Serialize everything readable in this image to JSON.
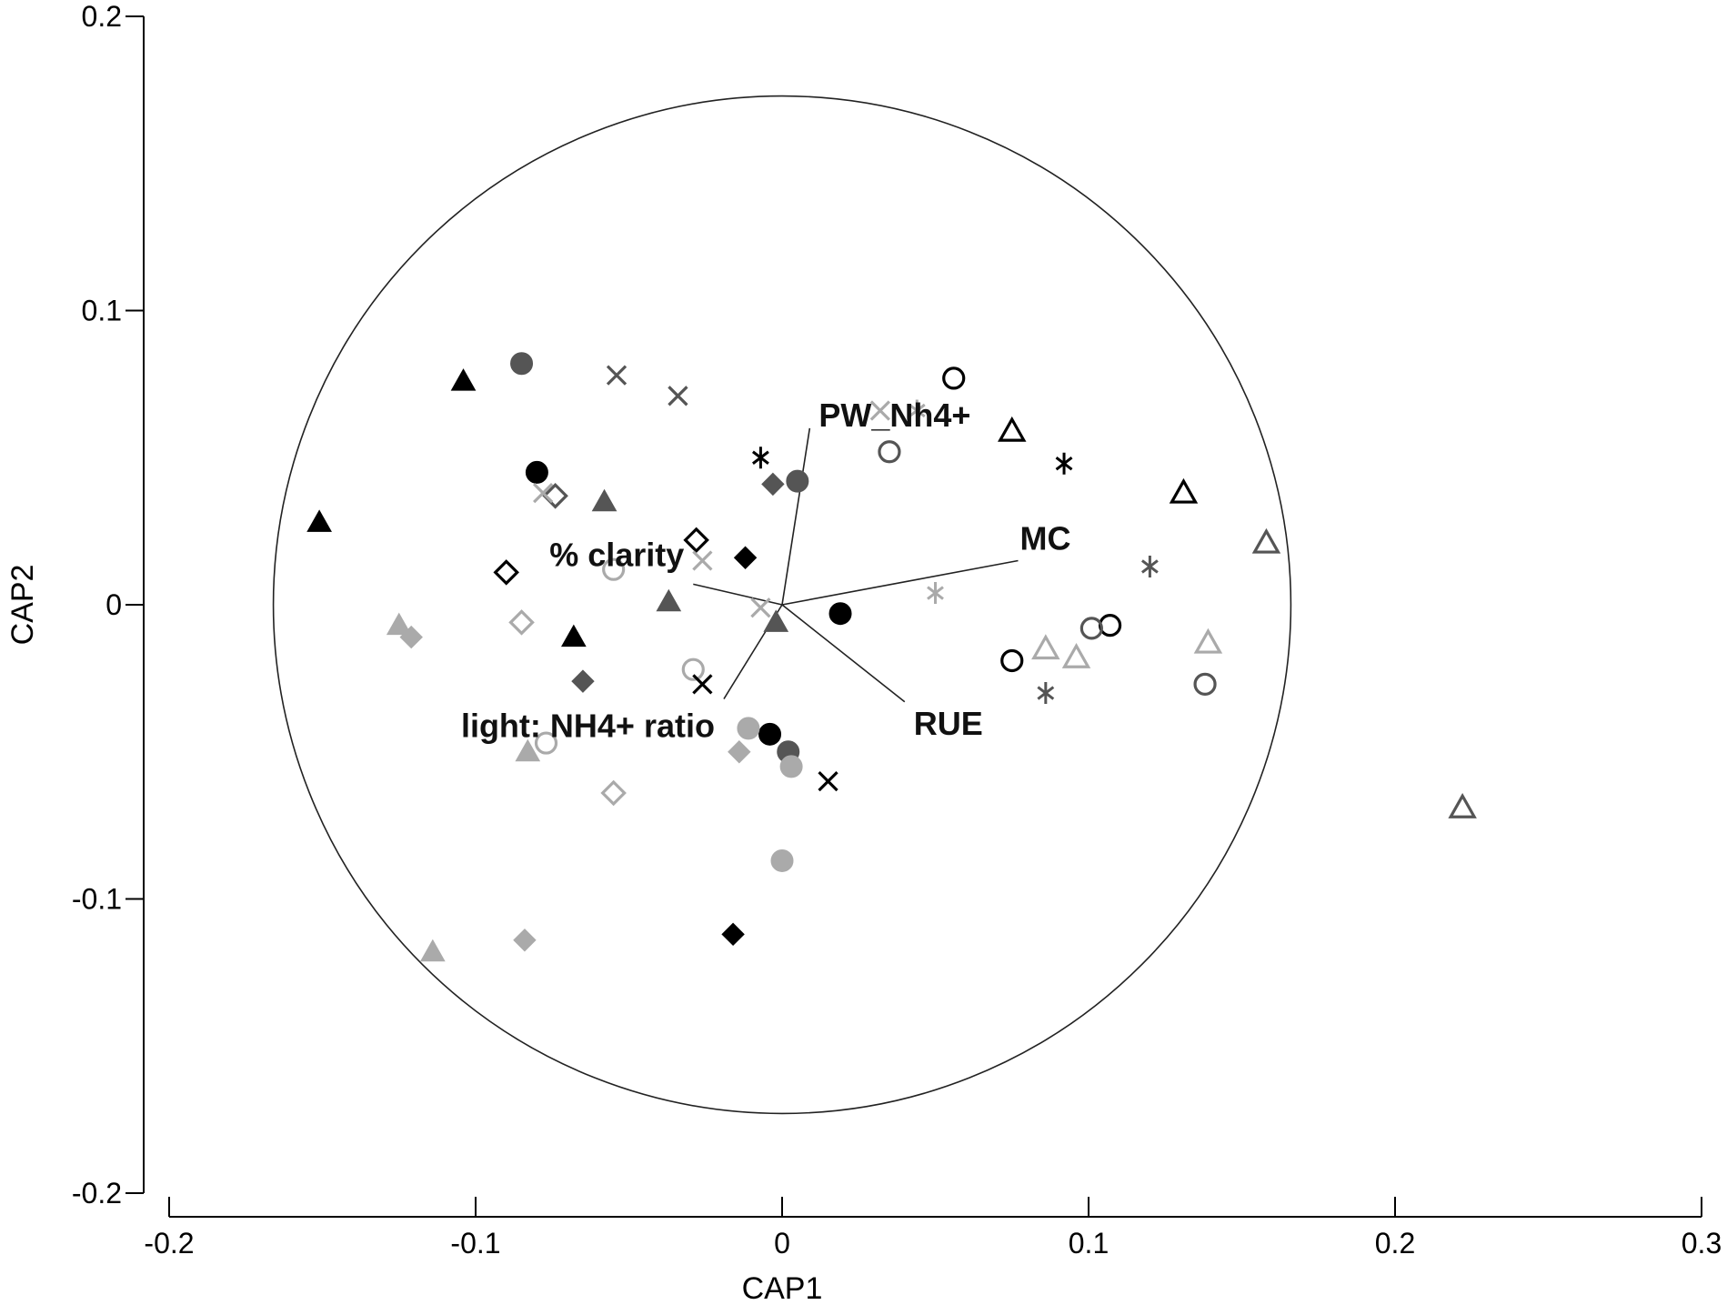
{
  "chart_data": {
    "type": "scatter",
    "xlabel": "CAP1",
    "ylabel": "CAP2",
    "xlim": [
      -0.2,
      0.3
    ],
    "ylim": [
      -0.2,
      0.2
    ],
    "xticks": [
      -0.2,
      -0.1,
      0,
      0.1,
      0.2,
      0.3
    ],
    "xtick_labels": [
      "-0.2",
      "-0.1",
      "0",
      "0.1",
      "0.2",
      "0.3"
    ],
    "yticks": [
      -0.2,
      -0.1,
      0,
      0.1,
      0.2
    ],
    "ytick_labels": [
      "-0.2",
      "-0.1",
      "0",
      "0.1",
      "0.2"
    ],
    "grid": false,
    "legend": "none",
    "correlation_circle": {
      "center": [
        0,
        0
      ],
      "radius": 0.166
    },
    "vectors": [
      {
        "label": "PW_Nh4+",
        "x": 0.009,
        "y": 0.06
      },
      {
        "label": "MC",
        "x": 0.077,
        "y": 0.015
      },
      {
        "label": "RUE",
        "x": 0.04,
        "y": -0.033
      },
      {
        "label": "% clarity",
        "x": -0.029,
        "y": 0.007
      },
      {
        "label": "light: NH4+ ratio",
        "x": -0.019,
        "y": -0.032
      }
    ],
    "points": [
      {
        "x": -0.151,
        "y": 0.028,
        "marker": "triangle",
        "fill": "filled",
        "color": "#000000"
      },
      {
        "x": -0.104,
        "y": 0.076,
        "marker": "triangle",
        "fill": "filled",
        "color": "#000000"
      },
      {
        "x": -0.068,
        "y": -0.011,
        "marker": "triangle",
        "fill": "filled",
        "color": "#000000"
      },
      {
        "x": -0.058,
        "y": 0.035,
        "marker": "triangle",
        "fill": "filled",
        "color": "#555555"
      },
      {
        "x": -0.037,
        "y": 0.001,
        "marker": "triangle",
        "fill": "filled",
        "color": "#555555"
      },
      {
        "x": -0.002,
        "y": -0.006,
        "marker": "triangle",
        "fill": "filled",
        "color": "#555555"
      },
      {
        "x": -0.125,
        "y": -0.007,
        "marker": "triangle",
        "fill": "filled",
        "color": "#aaaaaa"
      },
      {
        "x": -0.083,
        "y": -0.05,
        "marker": "triangle",
        "fill": "filled",
        "color": "#aaaaaa"
      },
      {
        "x": -0.114,
        "y": -0.118,
        "marker": "triangle",
        "fill": "filled",
        "color": "#aaaaaa"
      },
      {
        "x": 0.075,
        "y": 0.059,
        "marker": "triangle",
        "fill": "open",
        "color": "#000000"
      },
      {
        "x": 0.131,
        "y": 0.038,
        "marker": "triangle",
        "fill": "open",
        "color": "#000000"
      },
      {
        "x": 0.158,
        "y": 0.021,
        "marker": "triangle",
        "fill": "open",
        "color": "#555555"
      },
      {
        "x": 0.222,
        "y": -0.069,
        "marker": "triangle",
        "fill": "open",
        "color": "#555555"
      },
      {
        "x": 0.086,
        "y": -0.015,
        "marker": "triangle",
        "fill": "open",
        "color": "#aaaaaa"
      },
      {
        "x": 0.096,
        "y": -0.018,
        "marker": "triangle",
        "fill": "open",
        "color": "#aaaaaa"
      },
      {
        "x": 0.139,
        "y": -0.013,
        "marker": "triangle",
        "fill": "open",
        "color": "#aaaaaa"
      },
      {
        "x": -0.08,
        "y": 0.045,
        "marker": "circle",
        "fill": "filled",
        "color": "#000000"
      },
      {
        "x": 0.019,
        "y": -0.003,
        "marker": "circle",
        "fill": "filled",
        "color": "#000000"
      },
      {
        "x": -0.004,
        "y": -0.044,
        "marker": "circle",
        "fill": "filled",
        "color": "#000000"
      },
      {
        "x": -0.085,
        "y": 0.082,
        "marker": "circle",
        "fill": "filled",
        "color": "#555555"
      },
      {
        "x": 0.005,
        "y": 0.042,
        "marker": "circle",
        "fill": "filled",
        "color": "#555555"
      },
      {
        "x": 0.002,
        "y": -0.05,
        "marker": "circle",
        "fill": "filled",
        "color": "#555555"
      },
      {
        "x": -0.011,
        "y": -0.042,
        "marker": "circle",
        "fill": "filled",
        "color": "#aaaaaa"
      },
      {
        "x": 0.003,
        "y": -0.055,
        "marker": "circle",
        "fill": "filled",
        "color": "#aaaaaa"
      },
      {
        "x": 0.0,
        "y": -0.087,
        "marker": "circle",
        "fill": "filled",
        "color": "#aaaaaa"
      },
      {
        "x": 0.056,
        "y": 0.077,
        "marker": "circle",
        "fill": "open",
        "color": "#000000"
      },
      {
        "x": 0.075,
        "y": -0.019,
        "marker": "circle",
        "fill": "open",
        "color": "#000000"
      },
      {
        "x": 0.107,
        "y": -0.007,
        "marker": "circle",
        "fill": "open",
        "color": "#000000"
      },
      {
        "x": 0.035,
        "y": 0.052,
        "marker": "circle",
        "fill": "open",
        "color": "#555555"
      },
      {
        "x": 0.101,
        "y": -0.008,
        "marker": "circle",
        "fill": "open",
        "color": "#555555"
      },
      {
        "x": 0.138,
        "y": -0.027,
        "marker": "circle",
        "fill": "open",
        "color": "#555555"
      },
      {
        "x": -0.029,
        "y": -0.022,
        "marker": "circle",
        "fill": "open",
        "color": "#aaaaaa"
      },
      {
        "x": -0.077,
        "y": -0.047,
        "marker": "circle",
        "fill": "open",
        "color": "#aaaaaa"
      },
      {
        "x": -0.055,
        "y": 0.012,
        "marker": "circle",
        "fill": "open",
        "color": "#aaaaaa"
      },
      {
        "x": -0.012,
        "y": 0.016,
        "marker": "diamond",
        "fill": "filled",
        "color": "#000000"
      },
      {
        "x": -0.016,
        "y": -0.112,
        "marker": "diamond",
        "fill": "filled",
        "color": "#000000"
      },
      {
        "x": -0.065,
        "y": -0.026,
        "marker": "diamond",
        "fill": "filled",
        "color": "#555555"
      },
      {
        "x": -0.003,
        "y": 0.041,
        "marker": "diamond",
        "fill": "filled",
        "color": "#555555"
      },
      {
        "x": -0.121,
        "y": -0.011,
        "marker": "diamond",
        "fill": "filled",
        "color": "#aaaaaa"
      },
      {
        "x": -0.084,
        "y": -0.114,
        "marker": "diamond",
        "fill": "filled",
        "color": "#aaaaaa"
      },
      {
        "x": -0.014,
        "y": -0.05,
        "marker": "diamond",
        "fill": "filled",
        "color": "#aaaaaa"
      },
      {
        "x": -0.09,
        "y": 0.011,
        "marker": "diamond",
        "fill": "open",
        "color": "#000000"
      },
      {
        "x": -0.028,
        "y": 0.022,
        "marker": "diamond",
        "fill": "open",
        "color": "#000000"
      },
      {
        "x": -0.074,
        "y": 0.037,
        "marker": "diamond",
        "fill": "open",
        "color": "#555555"
      },
      {
        "x": -0.085,
        "y": -0.006,
        "marker": "diamond",
        "fill": "open",
        "color": "#aaaaaa"
      },
      {
        "x": -0.055,
        "y": -0.064,
        "marker": "diamond",
        "fill": "open",
        "color": "#aaaaaa"
      },
      {
        "x": -0.026,
        "y": -0.027,
        "marker": "cross",
        "fill": "line",
        "color": "#000000"
      },
      {
        "x": 0.015,
        "y": -0.06,
        "marker": "cross",
        "fill": "line",
        "color": "#000000"
      },
      {
        "x": -0.054,
        "y": 0.078,
        "marker": "cross",
        "fill": "line",
        "color": "#555555"
      },
      {
        "x": -0.034,
        "y": 0.071,
        "marker": "cross",
        "fill": "line",
        "color": "#555555"
      },
      {
        "x": -0.078,
        "y": 0.038,
        "marker": "cross",
        "fill": "line",
        "color": "#aaaaaa"
      },
      {
        "x": -0.026,
        "y": 0.015,
        "marker": "cross",
        "fill": "line",
        "color": "#aaaaaa"
      },
      {
        "x": -0.007,
        "y": -0.001,
        "marker": "cross",
        "fill": "line",
        "color": "#aaaaaa"
      },
      {
        "x": 0.032,
        "y": 0.066,
        "marker": "cross",
        "fill": "line",
        "color": "#aaaaaa"
      },
      {
        "x": -0.007,
        "y": 0.05,
        "marker": "asterisk",
        "fill": "line",
        "color": "#000000"
      },
      {
        "x": 0.092,
        "y": 0.048,
        "marker": "asterisk",
        "fill": "line",
        "color": "#000000"
      },
      {
        "x": 0.12,
        "y": 0.013,
        "marker": "asterisk",
        "fill": "line",
        "color": "#555555"
      },
      {
        "x": 0.086,
        "y": -0.03,
        "marker": "asterisk",
        "fill": "line",
        "color": "#555555"
      },
      {
        "x": 0.05,
        "y": 0.004,
        "marker": "asterisk",
        "fill": "line",
        "color": "#aaaaaa"
      },
      {
        "x": 0.044,
        "y": 0.066,
        "marker": "asterisk",
        "fill": "line",
        "color": "#aaaaaa"
      }
    ]
  }
}
